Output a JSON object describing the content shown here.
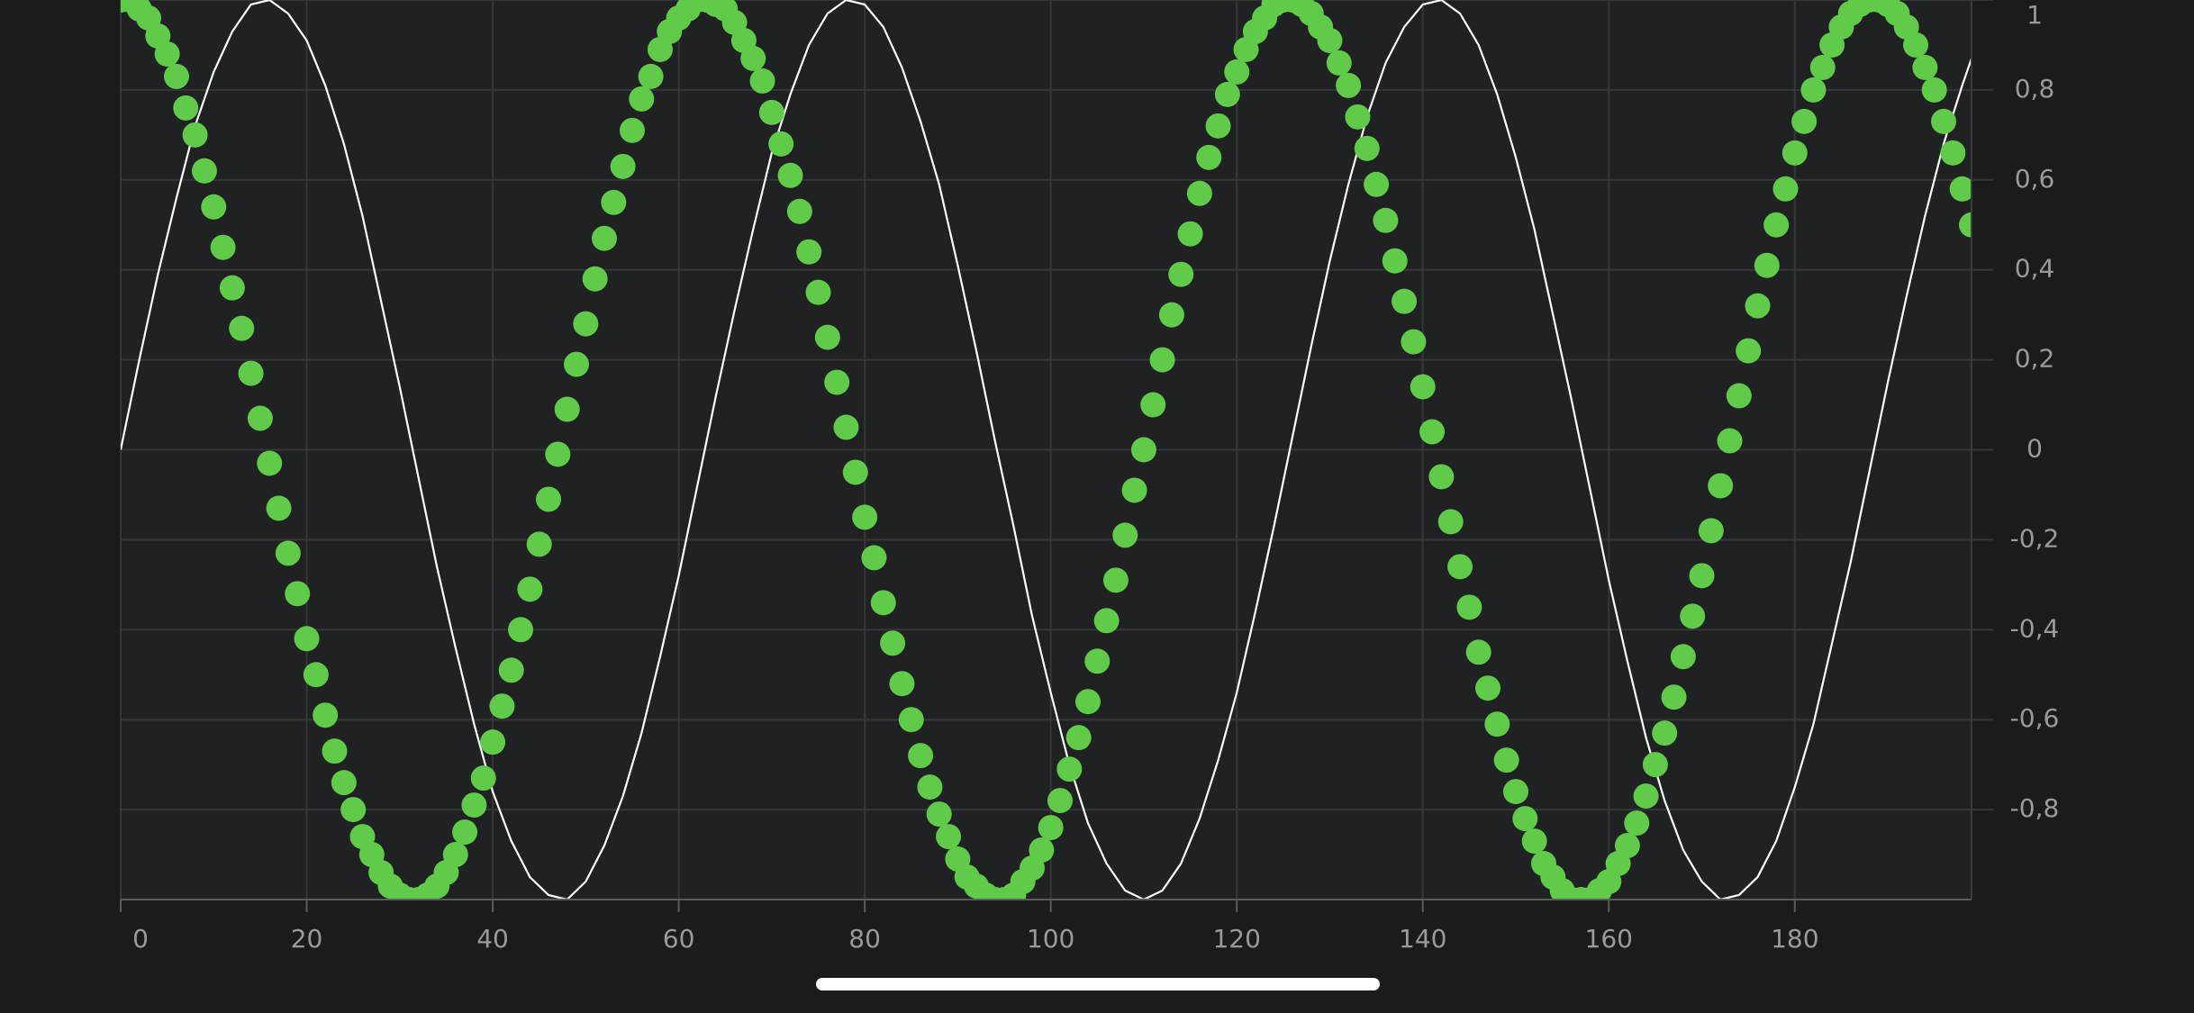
{
  "chart_data": {
    "type": "line",
    "xlim": [
      0,
      199
    ],
    "ylim": [
      -1,
      1
    ],
    "xticks": [
      0,
      20,
      40,
      60,
      80,
      100,
      120,
      140,
      160,
      180
    ],
    "yticks": [
      {
        "value": -0.8,
        "label": "-0,8"
      },
      {
        "value": -0.6,
        "label": "-0,6"
      },
      {
        "value": -0.4,
        "label": "-0,4"
      },
      {
        "value": -0.2,
        "label": "-0,2"
      },
      0,
      {
        "value": 0.2,
        "label": "0,2"
      },
      {
        "value": 0.4,
        "label": "0,4"
      },
      {
        "value": 0.6,
        "label": "0,6"
      },
      {
        "value": 0.8,
        "label": "0,8"
      },
      1
    ],
    "grid": true,
    "series": [
      {
        "type": "line",
        "color": "#ffffff",
        "x": [
          0,
          2,
          4,
          6,
          8,
          10,
          12,
          14,
          16,
          18,
          20,
          22,
          24,
          26,
          28,
          30,
          32,
          34,
          36,
          38,
          40,
          42,
          44,
          46,
          48,
          50,
          52,
          54,
          56,
          58,
          60,
          62,
          64,
          66,
          68,
          70,
          72,
          74,
          76,
          78,
          80,
          82,
          84,
          86,
          88,
          90,
          92,
          94,
          96,
          98,
          100,
          102,
          104,
          106,
          108,
          110,
          112,
          114,
          116,
          118,
          120,
          122,
          124,
          126,
          128,
          130,
          132,
          134,
          136,
          138,
          140,
          142,
          144,
          146,
          148,
          150,
          152,
          154,
          156,
          158,
          160,
          162,
          164,
          166,
          168,
          170,
          172,
          174,
          176,
          178,
          180,
          182,
          184,
          186,
          188,
          190,
          192,
          194,
          196,
          198,
          199
        ],
        "values": [
          0,
          0.2,
          0.39,
          0.56,
          0.72,
          0.84,
          0.93,
          0.99,
          1,
          0.97,
          0.91,
          0.81,
          0.68,
          0.52,
          0.33,
          0.14,
          -0.06,
          -0.26,
          -0.44,
          -0.61,
          -0.76,
          -0.87,
          -0.95,
          -0.99,
          -1,
          -0.96,
          -0.88,
          -0.77,
          -0.63,
          -0.46,
          -0.28,
          -0.08,
          0.12,
          0.31,
          0.49,
          0.66,
          0.79,
          0.9,
          0.97,
          1,
          0.99,
          0.94,
          0.85,
          0.73,
          0.59,
          0.41,
          0.22,
          0.02,
          -0.17,
          -0.37,
          -0.54,
          -0.7,
          -0.83,
          -0.92,
          -0.98,
          -1,
          -0.98,
          -0.92,
          -0.82,
          -0.69,
          -0.54,
          -0.36,
          -0.17,
          0.03,
          0.23,
          0.42,
          0.59,
          0.74,
          0.86,
          0.94,
          0.99,
          1,
          0.97,
          0.9,
          0.79,
          0.65,
          0.49,
          0.3,
          0.11,
          -0.09,
          -0.29,
          -0.47,
          -0.64,
          -0.78,
          -0.89,
          -0.96,
          -1,
          -0.99,
          -0.95,
          -0.87,
          -0.75,
          -0.61,
          -0.43,
          -0.25,
          -0.05,
          0.15,
          0.34,
          0.52,
          0.68,
          0.81,
          0.87
        ]
      },
      {
        "type": "scatter",
        "color": "#5fcb49",
        "x": [
          0,
          1,
          2,
          3,
          4,
          5,
          6,
          7,
          8,
          9,
          10,
          11,
          12,
          13,
          14,
          15,
          16,
          17,
          18,
          19,
          20,
          21,
          22,
          23,
          24,
          25,
          26,
          27,
          28,
          29,
          30,
          31,
          32,
          33,
          34,
          35,
          36,
          37,
          38,
          39,
          40,
          41,
          42,
          43,
          44,
          45,
          46,
          47,
          48,
          49,
          50,
          51,
          52,
          53,
          54,
          55,
          56,
          57,
          58,
          59,
          60,
          61,
          62,
          63,
          64,
          65,
          66,
          67,
          68,
          69,
          70,
          71,
          72,
          73,
          74,
          75,
          76,
          77,
          78,
          79,
          80,
          81,
          82,
          83,
          84,
          85,
          86,
          87,
          88,
          89,
          90,
          91,
          92,
          93,
          94,
          95,
          96,
          97,
          98,
          99,
          100,
          101,
          102,
          103,
          104,
          105,
          106,
          107,
          108,
          109,
          110,
          111,
          112,
          113,
          114,
          115,
          116,
          117,
          118,
          119,
          120,
          121,
          122,
          123,
          124,
          125,
          126,
          127,
          128,
          129,
          130,
          131,
          132,
          133,
          134,
          135,
          136,
          137,
          138,
          139,
          140,
          141,
          142,
          143,
          144,
          145,
          146,
          147,
          148,
          149,
          150,
          151,
          152,
          153,
          154,
          155,
          156,
          157,
          158,
          159,
          160,
          161,
          162,
          163,
          164,
          165,
          166,
          167,
          168,
          169,
          170,
          171,
          172,
          173,
          174,
          175,
          176,
          177,
          178,
          179,
          180,
          181,
          182,
          183,
          184,
          185,
          186,
          187,
          188,
          189,
          190,
          191,
          192,
          193,
          194,
          195,
          196,
          197,
          198,
          199
        ],
        "values": [
          1,
          1,
          0.98,
          0.96,
          0.92,
          0.88,
          0.83,
          0.76,
          0.7,
          0.62,
          0.54,
          0.45,
          0.36,
          0.27,
          0.17,
          0.07,
          -0.03,
          -0.13,
          -0.23,
          -0.32,
          -0.42,
          -0.5,
          -0.59,
          -0.67,
          -0.74,
          -0.8,
          -0.86,
          -0.9,
          -0.94,
          -0.97,
          -0.99,
          -1,
          -1,
          -0.99,
          -0.97,
          -0.94,
          -0.9,
          -0.85,
          -0.79,
          -0.73,
          -0.65,
          -0.57,
          -0.49,
          -0.4,
          -0.31,
          -0.21,
          -0.11,
          -0.01,
          0.09,
          0.19,
          0.28,
          0.38,
          0.47,
          0.55,
          0.63,
          0.71,
          0.78,
          0.83,
          0.89,
          0.93,
          0.96,
          0.98,
          1,
          1,
          0.99,
          0.98,
          0.95,
          0.91,
          0.87,
          0.82,
          0.75,
          0.68,
          0.61,
          0.53,
          0.44,
          0.35,
          0.25,
          0.15,
          0.05,
          -0.05,
          -0.15,
          -0.24,
          -0.34,
          -0.43,
          -0.52,
          -0.6,
          -0.68,
          -0.75,
          -0.81,
          -0.86,
          -0.91,
          -0.95,
          -0.97,
          -0.99,
          -1,
          -1,
          -0.99,
          -0.96,
          -0.93,
          -0.89,
          -0.84,
          -0.78,
          -0.71,
          -0.64,
          -0.56,
          -0.47,
          -0.38,
          -0.29,
          -0.19,
          -0.09,
          0,
          0.1,
          0.2,
          0.3,
          0.39,
          0.48,
          0.57,
          0.65,
          0.72,
          0.79,
          0.84,
          0.89,
          0.93,
          0.96,
          0.99,
          1,
          1,
          0.99,
          0.97,
          0.94,
          0.91,
          0.86,
          0.81,
          0.74,
          0.67,
          0.59,
          0.51,
          0.42,
          0.33,
          0.24,
          0.14,
          0.04,
          -0.06,
          -0.16,
          -0.26,
          -0.35,
          -0.45,
          -0.53,
          -0.61,
          -0.69,
          -0.76,
          -0.82,
          -0.87,
          -0.92,
          -0.95,
          -0.98,
          -1,
          -1,
          -1,
          -0.98,
          -0.96,
          -0.92,
          -0.88,
          -0.83,
          -0.77,
          -0.7,
          -0.63,
          -0.55,
          -0.46,
          -0.37,
          -0.28,
          -0.18,
          -0.08,
          0.02,
          0.12,
          0.22,
          0.32,
          0.41,
          0.5,
          0.58,
          0.66,
          0.73,
          0.8,
          0.85,
          0.9,
          0.94,
          0.97,
          0.99,
          1,
          1,
          0.99,
          0.97,
          0.94,
          0.9,
          0.85,
          0.8,
          0.73,
          0.66,
          0.58,
          0.5
        ]
      }
    ]
  }
}
